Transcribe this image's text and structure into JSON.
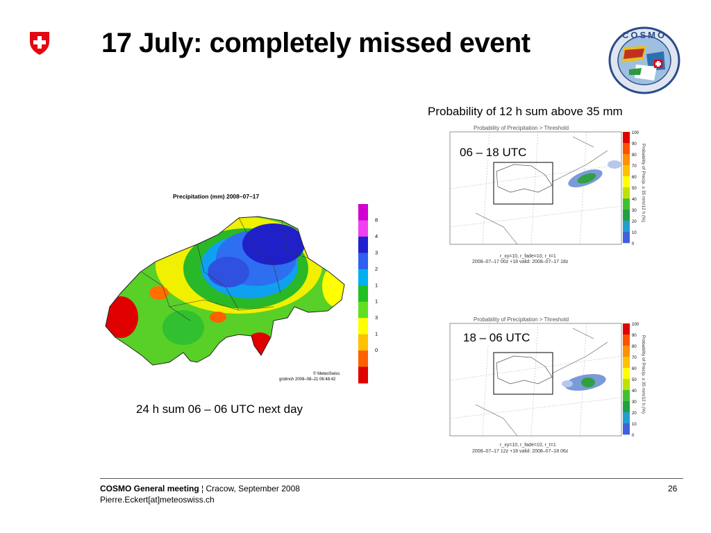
{
  "slide": {
    "title": "17 July: completely missed event"
  },
  "left_figure": {
    "map_title": "Precipitation (mm) 2008–07–17",
    "colorbar_ticks": [
      "80",
      "40",
      "30",
      "20",
      "15",
      "10",
      "3",
      "1",
      "0.5"
    ],
    "colorbar_colors": [
      "#d000d0",
      "#f040f0",
      "#2020d0",
      "#3060f0",
      "#00b0f0",
      "#20c020",
      "#60e020",
      "#ffff00",
      "#ffc000",
      "#ff6000",
      "#e00000"
    ],
    "credit": "© MeteoSwiss",
    "stamp": "gridmch 2008–08–21 06:48:42",
    "caption": "24 h sum 06 – 06 UTC next day"
  },
  "right_figures": {
    "caption": "Probability of 12 h sum above 35 mm",
    "panels": [
      {
        "header": "Probability of Precipitation > Threshold",
        "utc_label": "06 – 18 UTC",
        "params": "r_xy=10, r_fade=10, r_t=1",
        "run_info": "2008–07–17 00z +18    valid: 2008–07–17 18z",
        "side_label": "Probability of Precip. ≥ 35 mm/12 h (%)"
      },
      {
        "header": "Probability of Precipitation > Threshold",
        "utc_label": "18 – 06 UTC",
        "params": "r_xy=10, r_fade=10, r_t=1",
        "run_info": "2008–07–17 12z +18    valid: 2008–07–18 06z",
        "side_label": "Probability of Precip. ≥ 35 mm/12 h (%)"
      }
    ],
    "scale_ticks": [
      "100",
      "90",
      "80",
      "70",
      "60",
      "50",
      "40",
      "30",
      "20",
      "10",
      "0"
    ]
  },
  "footer": {
    "meeting": "COSMO General meeting",
    "separator": " ¦ ",
    "location": "Cracow, September 2008",
    "email": "Pierre.Eckert[at]meteoswiss.ch",
    "page": "26"
  },
  "logos": {
    "left": "swiss-federal-cross",
    "right_text": "COSMO"
  }
}
